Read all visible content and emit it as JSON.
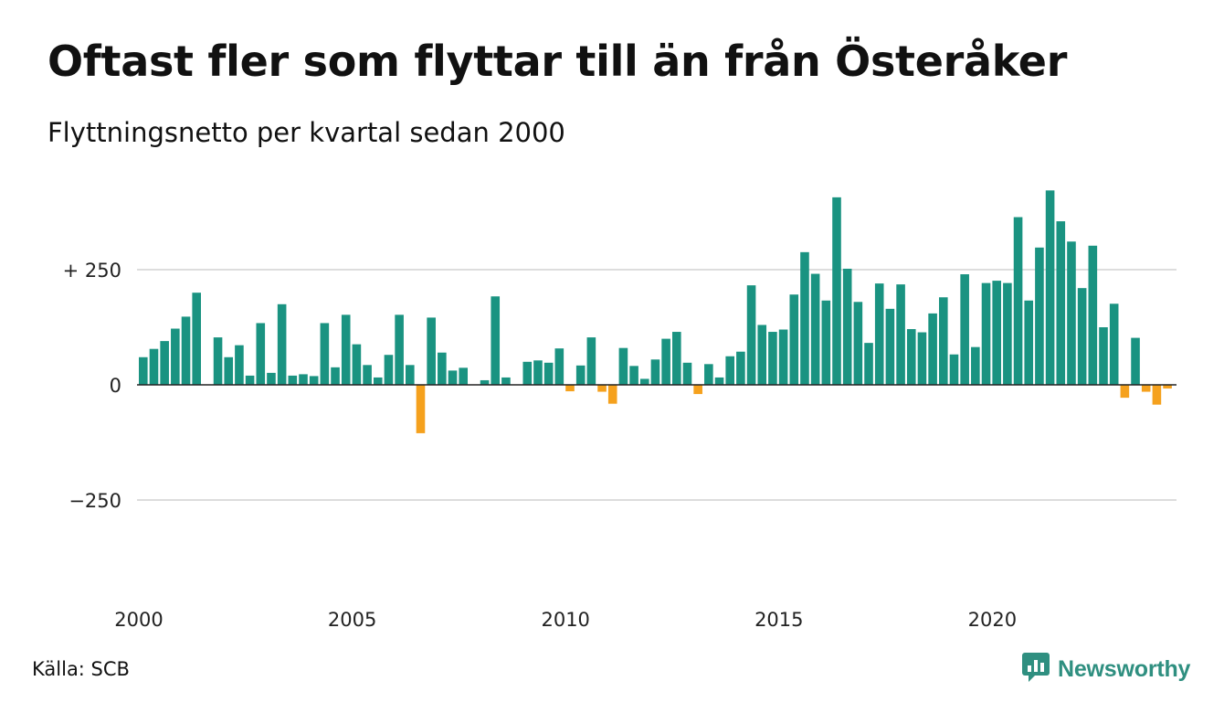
{
  "header": {
    "title": "Oftast fler som flyttar till än från Österåker",
    "subtitle": "Flyttningsnetto per kvartal sedan 2000"
  },
  "footer": {
    "source": "Källa: SCB",
    "brand": "Newsworthy"
  },
  "colors": {
    "positive": "#1a9381",
    "negative": "#f5a11d",
    "grid": "#dddddd",
    "brand": "#2f8f80"
  },
  "chart_data": {
    "type": "bar",
    "title": "Oftast fler som flyttar till än från Österåker",
    "subtitle": "Flyttningsnetto per kvartal sedan 2000",
    "xlabel": "",
    "ylabel": "",
    "ylim": [
      -450,
      420
    ],
    "grid": true,
    "x_start_year": 2000,
    "periods_per_year": 4,
    "x_ticks": [
      "2000",
      "2005",
      "2010",
      "2015",
      "2020"
    ],
    "y_ticks": [
      {
        "value": 250,
        "label": "+ 250"
      },
      {
        "value": 0,
        "label": "0"
      },
      {
        "value": -250,
        "label": "−250"
      }
    ],
    "values": [
      60,
      78,
      95,
      122,
      148,
      200,
      0,
      103,
      60,
      86,
      20,
      134,
      26,
      175,
      20,
      23,
      19,
      134,
      38,
      152,
      88,
      43,
      16,
      65,
      152,
      43,
      -105,
      146,
      70,
      31,
      37,
      0,
      10,
      192,
      16,
      0,
      50,
      53,
      48,
      79,
      -14,
      42,
      103,
      -15,
      -41,
      80,
      41,
      13,
      55,
      100,
      115,
      48,
      -20,
      45,
      16,
      62,
      72,
      216,
      130,
      115,
      120,
      196,
      288,
      241,
      183,
      407,
      252,
      180,
      91,
      220,
      165,
      218,
      121,
      114,
      155,
      190,
      66,
      240,
      82,
      221,
      226,
      221,
      364,
      183,
      298,
      422,
      355,
      311,
      210,
      302,
      125,
      176,
      -28,
      102,
      -15,
      -43,
      -8
    ]
  }
}
